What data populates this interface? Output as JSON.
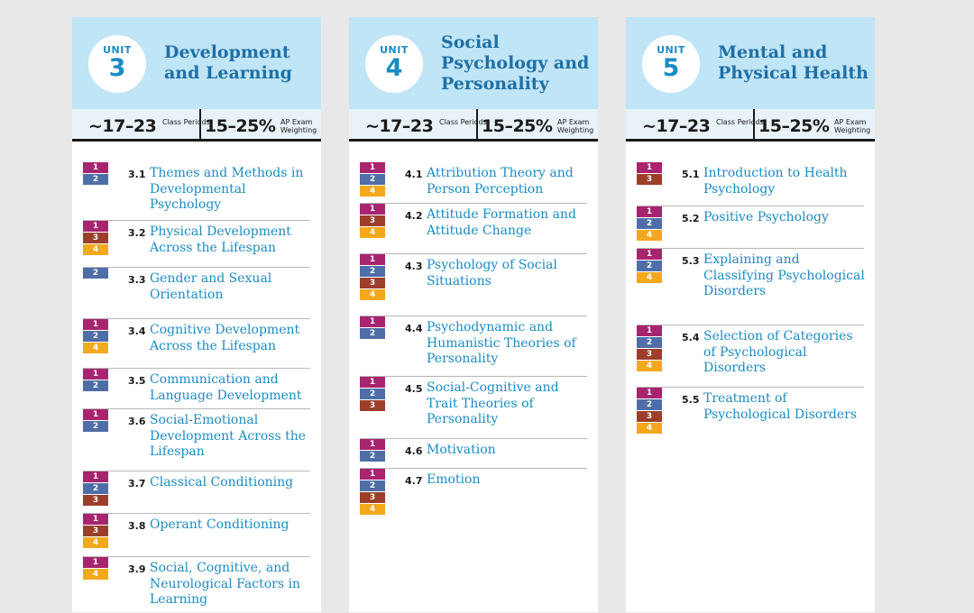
{
  "units": [
    {
      "label": "UNIT",
      "number": "3",
      "title": "Development and Learning",
      "class_periods": "~17–23",
      "class_periods_caption": "Class Periods",
      "exam_weighting": "15–25%",
      "exam_weighting_caption": "AP Exam Weighting",
      "topics": [
        {
          "num": "3.1",
          "title": "Themes and Methods in Developmental Psychology",
          "tags": [
            "1",
            "2"
          ]
        },
        {
          "num": "3.2",
          "title": "Physical Development Across the Lifespan",
          "tags": [
            "1",
            "3",
            "4"
          ]
        },
        {
          "num": "3.3",
          "title": "Gender and Sexual Orientation",
          "tags": [
            "2"
          ]
        },
        {
          "num": "3.4",
          "title": "Cognitive Development Across the Lifespan",
          "tags": [
            "1",
            "2",
            "4"
          ]
        },
        {
          "num": "3.5",
          "title": "Communication and Language Development",
          "tags": [
            "1",
            "2"
          ]
        },
        {
          "num": "3.6",
          "title": "Social-Emotional Development Across the Lifespan",
          "tags": [
            "1",
            "2"
          ]
        },
        {
          "num": "3.7",
          "title": "Classical Conditioning",
          "tags": [
            "1",
            "2",
            "3"
          ]
        },
        {
          "num": "3.8",
          "title": "Operant Conditioning",
          "tags": [
            "1",
            "3",
            "4"
          ]
        },
        {
          "num": "3.9",
          "title": "Social, Cognitive, and Neurological Factors in Learning",
          "tags": [
            "1",
            "4"
          ]
        }
      ]
    },
    {
      "label": "UNIT",
      "number": "4",
      "title": "Social Psychology and Personality",
      "class_periods": "~17–23",
      "class_periods_caption": "Class Periods",
      "exam_weighting": "15–25%",
      "exam_weighting_caption": "AP Exam Weighting",
      "topics": [
        {
          "num": "4.1",
          "title": "Attribution Theory and Person Perception",
          "tags": [
            "1",
            "2",
            "4"
          ]
        },
        {
          "num": "4.2",
          "title": "Attitude Formation and Attitude Change",
          "tags": [
            "1",
            "3",
            "4"
          ]
        },
        {
          "num": "4.3",
          "title": "Psychology of Social Situations",
          "tags": [
            "1",
            "2",
            "3",
            "4"
          ]
        },
        {
          "num": "4.4",
          "title": "Psychodynamic and Humanistic Theories of Personality",
          "tags": [
            "1",
            "2"
          ]
        },
        {
          "num": "4.5",
          "title": "Social-Cognitive and Trait Theories of Personality",
          "tags": [
            "1",
            "2",
            "3"
          ]
        },
        {
          "num": "4.6",
          "title": "Motivation",
          "tags": [
            "1",
            "2"
          ]
        },
        {
          "num": "4.7",
          "title": "Emotion",
          "tags": [
            "1",
            "2",
            "3",
            "4"
          ]
        }
      ]
    },
    {
      "label": "UNIT",
      "number": "5",
      "title": "Mental and Physical Health",
      "class_periods": "~17–23",
      "class_periods_caption": "Class Periods",
      "exam_weighting": "15–25%",
      "exam_weighting_caption": "AP Exam Weighting",
      "topics": [
        {
          "num": "5.1",
          "title": "Introduction to Health Psychology",
          "tags": [
            "1",
            "3"
          ]
        },
        {
          "num": "5.2",
          "title": "Positive Psychology",
          "tags": [
            "1",
            "2",
            "4"
          ]
        },
        {
          "num": "5.3",
          "title": "Explaining and Classifying Psychological Disorders",
          "tags": [
            "1",
            "2",
            "4"
          ]
        },
        {
          "num": "5.4",
          "title": "Selection of Categories of Psychological Disorders",
          "tags": [
            "1",
            "2",
            "3",
            "4"
          ]
        },
        {
          "num": "5.5",
          "title": "Treatment of Psychological Disorders",
          "tags": [
            "1",
            "2",
            "3",
            "4"
          ]
        }
      ]
    }
  ],
  "colors": {
    "header_bg": "#bfe5f6",
    "title": "#1f6fa6",
    "topic_link": "#1a8cc4",
    "tag_1": "#a8246e",
    "tag_2": "#4f6ea8",
    "tag_3": "#9c3e2a",
    "tag_4": "#f4a81c"
  }
}
